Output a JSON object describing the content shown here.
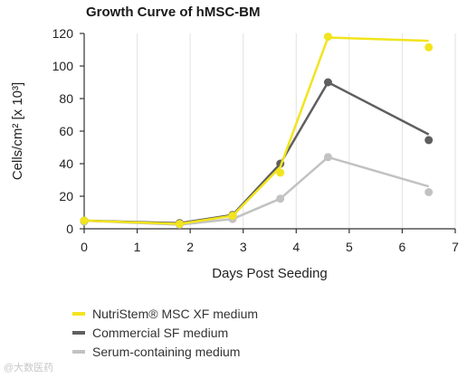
{
  "chart_data": {
    "type": "scatter",
    "title": "Growth Curve of hMSC-BM",
    "xlabel": "Days Post Seeding",
    "ylabel": "Cells/cm² [x 10³]",
    "xlim": [
      0,
      7
    ],
    "ylim": [
      0,
      120
    ],
    "xticks": [
      "0",
      "1",
      "2",
      "3",
      "4",
      "5",
      "6",
      "7"
    ],
    "yticks": [
      "0",
      "20",
      "40",
      "60",
      "80",
      "100",
      "120"
    ],
    "grid": "vertical",
    "legend_position": "bottom-left",
    "series": [
      {
        "name": "Serum-containing medium",
        "color": "#c2c2c2",
        "points": [
          [
            0,
            5
          ],
          [
            1.8,
            2.5
          ],
          [
            2.8,
            6
          ],
          [
            3.7,
            18.5
          ],
          [
            4.6,
            44
          ],
          [
            6.5,
            26
          ]
        ],
        "markers": [
          [
            0,
            4.5
          ],
          [
            1.8,
            2.5
          ],
          [
            2.8,
            6
          ],
          [
            3.7,
            18.5
          ],
          [
            4.6,
            44
          ],
          [
            6.5,
            22.5
          ]
        ]
      },
      {
        "name": "Commercial SF medium",
        "color": "#5f5f5f",
        "points": [
          [
            0,
            5
          ],
          [
            1.8,
            3.5
          ],
          [
            2.8,
            8.5
          ],
          [
            3.7,
            40
          ],
          [
            4.6,
            90
          ],
          [
            6.5,
            58
          ]
        ],
        "markers": [
          [
            0,
            5
          ],
          [
            1.8,
            3.5
          ],
          [
            2.8,
            8.5
          ],
          [
            3.7,
            40
          ],
          [
            4.6,
            90
          ],
          [
            6.5,
            54.5
          ]
        ]
      },
      {
        "name": "NutriStem® MSC XF medium",
        "color": "#f2e41d",
        "points": [
          [
            0,
            5
          ],
          [
            1.8,
            3
          ],
          [
            2.8,
            8
          ],
          [
            3.7,
            38
          ],
          [
            4.6,
            117.5
          ],
          [
            6.5,
            115.5
          ]
        ],
        "markers": [
          [
            0,
            5
          ],
          [
            1.8,
            3
          ],
          [
            2.8,
            8
          ],
          [
            3.7,
            34.5
          ],
          [
            4.6,
            118
          ],
          [
            6.5,
            111.5
          ]
        ]
      }
    ]
  },
  "legend": {
    "items": [
      {
        "label": "NutriStem® MSC XF medium",
        "color": "#f2e41d"
      },
      {
        "label": "Commercial SF medium",
        "color": "#5f5f5f"
      },
      {
        "label": "Serum-containing medium",
        "color": "#c2c2c2"
      }
    ]
  },
  "watermark": "@大数医药"
}
